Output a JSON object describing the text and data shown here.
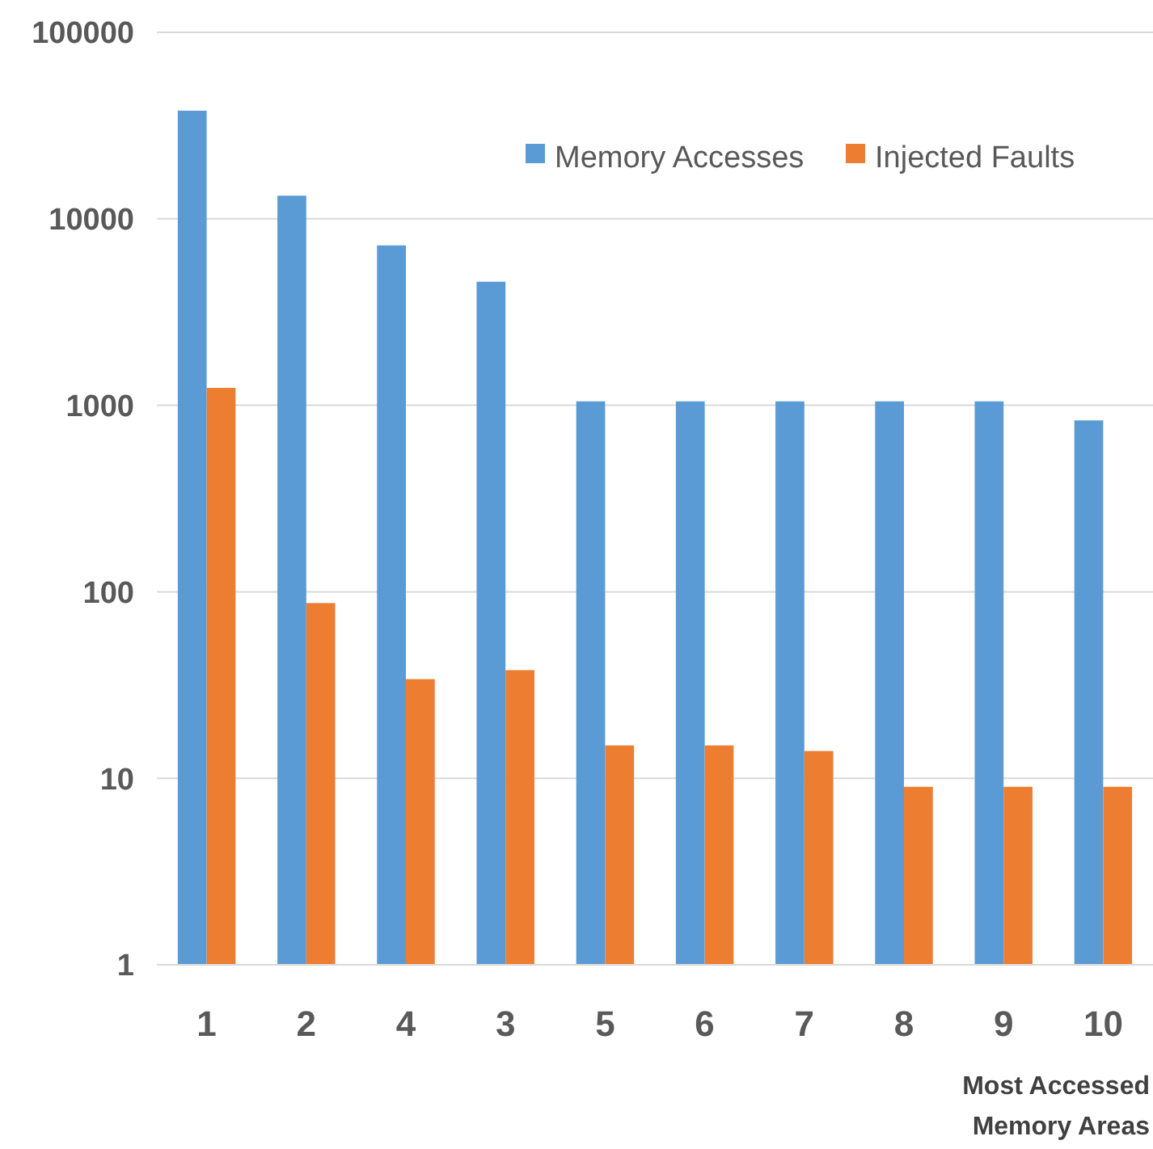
{
  "chart_data": {
    "type": "bar",
    "xlabel": "Most Accessed Memory Areas",
    "categories": [
      "1",
      "2",
      "4",
      "3",
      "5",
      "6",
      "7",
      "8",
      "9",
      "10"
    ],
    "series": [
      {
        "name": "Memory Accesses",
        "color": "#5b9bd5",
        "values": [
          38000,
          13300,
          7200,
          4600,
          1050,
          1050,
          1050,
          1050,
          1050,
          830
        ]
      },
      {
        "name": "Injected Faults",
        "color": "#ed7d31",
        "values": [
          1240,
          87,
          34,
          38,
          15,
          15,
          14,
          9,
          9,
          9
        ]
      }
    ],
    "log": true,
    "ylim": [
      1,
      100000
    ],
    "yticks": [
      1,
      10,
      100,
      1000,
      10000,
      100000
    ],
    "grid": "y",
    "legend": "top right"
  }
}
